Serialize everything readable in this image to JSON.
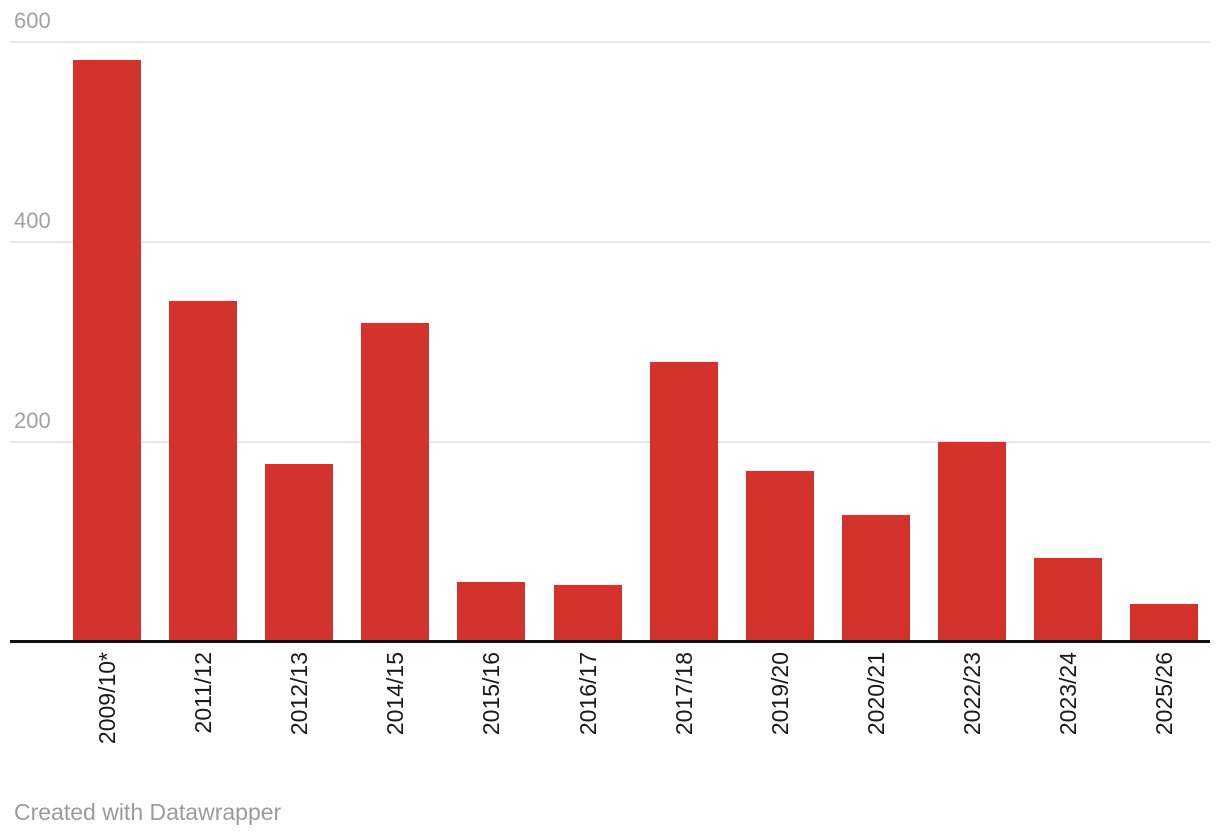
{
  "footer": {
    "attribution": "Created with Datawrapper"
  },
  "colors": {
    "bar": "#d3322d",
    "grid": "#e8e8e8",
    "axis": "#111111",
    "y_tick_label": "#a1a1a1",
    "x_label": "#1a1a1a",
    "footer_text": "#9b9b9b",
    "background": "#ffffff"
  },
  "chart_data": {
    "type": "bar",
    "categories": [
      "2009/10*",
      "2011/12",
      "2012/13",
      "2014/15",
      "2015/16",
      "2016/17",
      "2017/18",
      "2019/20",
      "2020/21",
      "2022/23",
      "2023/24",
      "2025/26"
    ],
    "values": [
      582,
      341,
      178,
      319,
      60,
      57,
      280,
      171,
      127,
      200,
      84,
      38
    ],
    "title": "",
    "xlabel": "",
    "ylabel": "",
    "ylim": [
      0,
      600
    ],
    "yticks": [
      600,
      400,
      200
    ],
    "ytick_labels": [
      "600",
      "400",
      "200"
    ],
    "grid": "horizontal",
    "legend": "none",
    "bar_color": "#d3322d"
  }
}
